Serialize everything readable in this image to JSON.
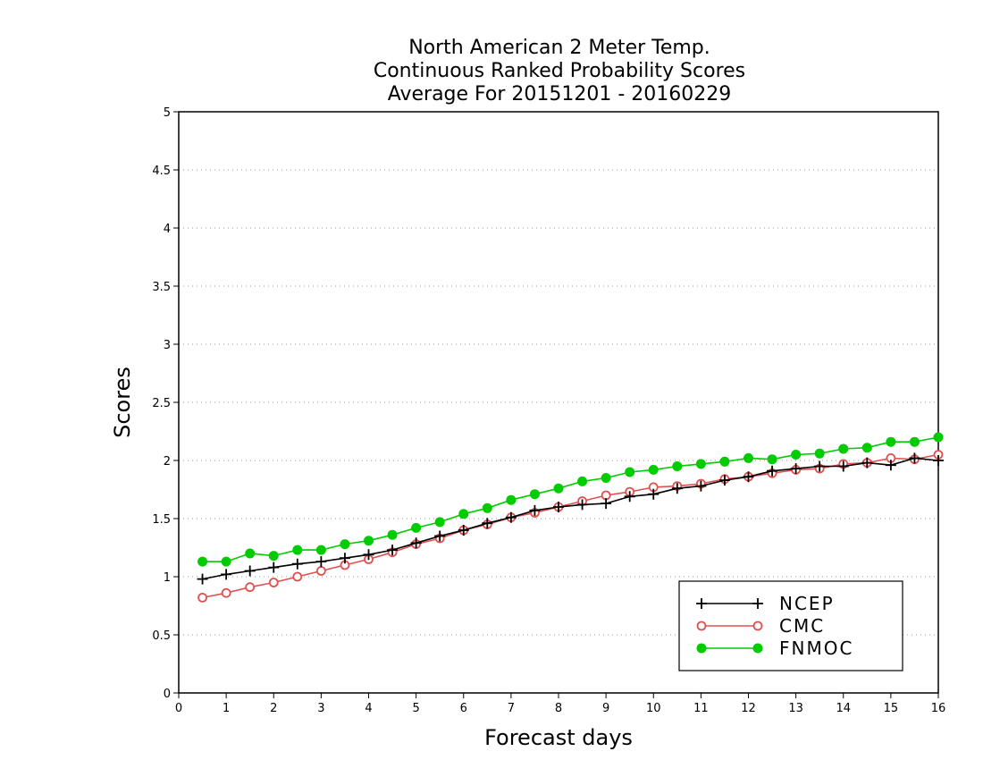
{
  "chart_data": {
    "type": "line",
    "title_lines": [
      "North American 2 Meter Temp.",
      "Continuous Ranked Probability Scores",
      "Average For 20151201 - 20160229"
    ],
    "xlabel": "Forecast days",
    "ylabel": "Scores",
    "xlim": [
      0,
      16
    ],
    "ylim": [
      0,
      5
    ],
    "x_ticks": [
      0,
      1,
      2,
      3,
      4,
      5,
      6,
      7,
      8,
      9,
      10,
      11,
      12,
      13,
      14,
      15,
      16
    ],
    "y_ticks": [
      0,
      0.5,
      1,
      1.5,
      2,
      2.5,
      3,
      3.5,
      4,
      4.5,
      5
    ],
    "x_tick_labels": [
      "0",
      "1",
      "2",
      "3",
      "4",
      "5",
      "6",
      "7",
      "8",
      "9",
      "10",
      "11",
      "12",
      "13",
      "14",
      "15",
      "16"
    ],
    "y_tick_labels": [
      "0",
      "0.5",
      "1",
      "1.5",
      "2",
      "2.5",
      "3",
      "3.5",
      "4",
      "4.5",
      "5"
    ],
    "grid": "horizontal dotted",
    "legend_position": "bottom-right",
    "x": [
      0.5,
      1.0,
      1.5,
      2.0,
      2.5,
      3.0,
      3.5,
      4.0,
      4.5,
      5.0,
      5.5,
      6.0,
      6.5,
      7.0,
      7.5,
      8.0,
      8.5,
      9.0,
      9.5,
      10.0,
      10.5,
      11.0,
      11.5,
      12.0,
      12.5,
      13.0,
      13.5,
      14.0,
      14.5,
      15.0,
      15.5,
      16.0
    ],
    "series": [
      {
        "name": "NCEP",
        "color": "#000000",
        "marker": "plus",
        "values": [
          0.98,
          1.02,
          1.05,
          1.08,
          1.11,
          1.13,
          1.16,
          1.19,
          1.23,
          1.29,
          1.35,
          1.4,
          1.46,
          1.51,
          1.57,
          1.6,
          1.62,
          1.63,
          1.69,
          1.71,
          1.76,
          1.78,
          1.83,
          1.86,
          1.91,
          1.93,
          1.95,
          1.95,
          1.98,
          1.96,
          2.02,
          2.0
        ]
      },
      {
        "name": "CMC",
        "color": "#e05050",
        "marker": "open-circle",
        "values": [
          0.82,
          0.86,
          0.91,
          0.95,
          1.0,
          1.05,
          1.1,
          1.15,
          1.21,
          1.28,
          1.33,
          1.4,
          1.45,
          1.51,
          1.55,
          1.6,
          1.65,
          1.7,
          1.73,
          1.77,
          1.78,
          1.8,
          1.84,
          1.86,
          1.89,
          1.92,
          1.93,
          1.97,
          1.98,
          2.02,
          2.01,
          2.05
        ]
      },
      {
        "name": "FNMOC",
        "color": "#00cc00",
        "marker": "filled-circle",
        "values": [
          1.13,
          1.13,
          1.2,
          1.18,
          1.23,
          1.23,
          1.28,
          1.31,
          1.36,
          1.42,
          1.47,
          1.54,
          1.59,
          1.66,
          1.71,
          1.76,
          1.82,
          1.85,
          1.9,
          1.92,
          1.95,
          1.97,
          1.99,
          2.02,
          2.01,
          2.05,
          2.06,
          2.1,
          2.11,
          2.16,
          2.16,
          2.2
        ]
      }
    ]
  }
}
